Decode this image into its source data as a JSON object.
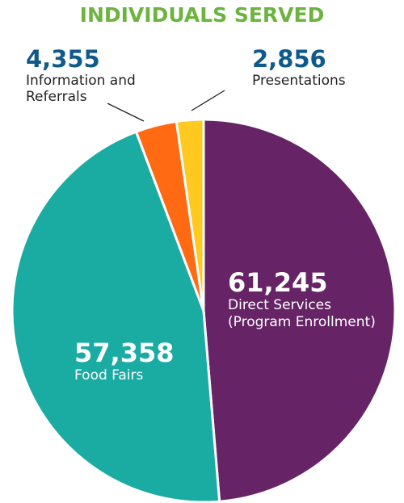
{
  "chart_data": {
    "type": "pie",
    "title": "INDIVIDUALS SERVED",
    "categories": [
      "Direct Services (Program Enrollment)",
      "Food Fairs",
      "Information and Referrals",
      "Presentations"
    ],
    "values": [
      61245,
      57358,
      4355,
      2856
    ],
    "value_labels": [
      "61,245",
      "57,358",
      "4,355",
      "2,856"
    ],
    "colors": [
      "#662466",
      "#1aaba3",
      "#ff6a13",
      "#ffc91f"
    ]
  }
}
